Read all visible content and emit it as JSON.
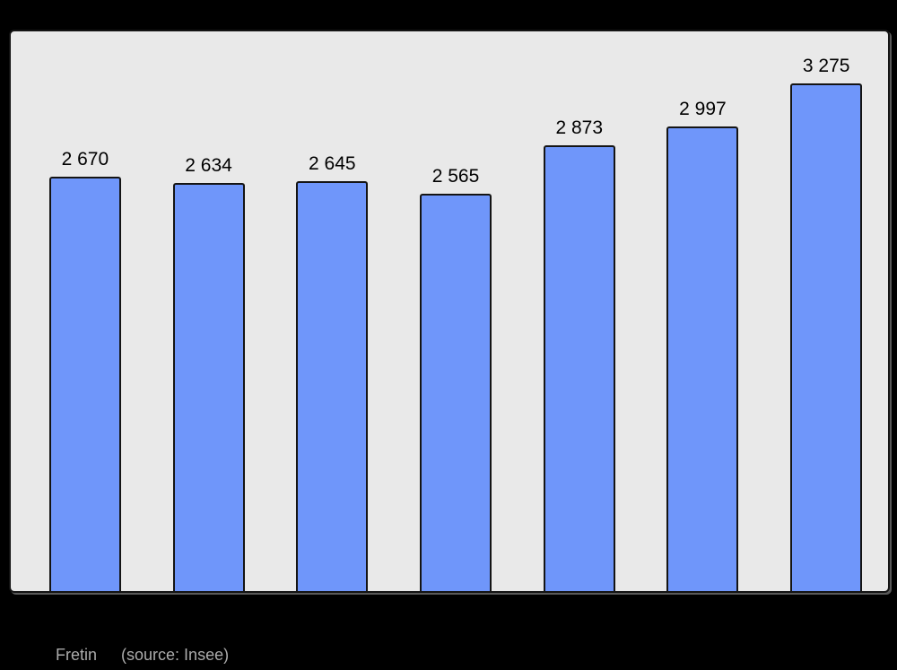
{
  "chart_data": {
    "type": "bar",
    "values": [
      2670,
      2634,
      2645,
      2565,
      2873,
      2997,
      3275
    ],
    "bar_labels": [
      "2 670",
      "2 634",
      "2 645",
      "2 565",
      "2 873",
      "2 997",
      "3 275"
    ],
    "title": "",
    "xlabel": "",
    "ylabel": "",
    "ylim": [
      0,
      3610
    ],
    "grid": false,
    "legend": false,
    "layout": {
      "bars_count": 7,
      "value_labels_position": "above-bars",
      "x_tick_labels_visible": false,
      "y_axis_visible": false
    },
    "colors": {
      "page_background": "#000000",
      "plot_background": "#e9e9e9",
      "bar_fill": "#6f96fa",
      "bar_border": "#141414",
      "frame_border": "#141414",
      "value_label_color": "#000000",
      "footer_text_color": "#ababab"
    }
  },
  "footer": {
    "place_label": "Fretin",
    "source_label": "(source: Insee)"
  }
}
